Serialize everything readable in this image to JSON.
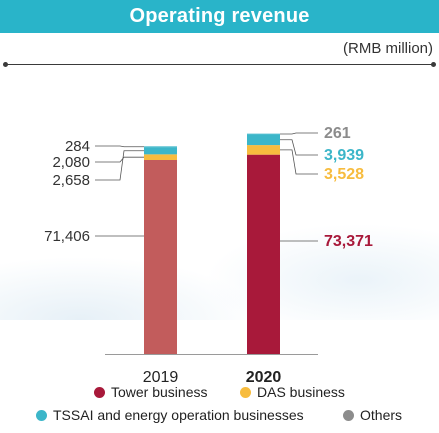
{
  "title": "Operating revenue",
  "unit": "(RMB million)",
  "colors": {
    "title_bg": "#29b4c9",
    "tower": "#c25c5c",
    "tower_2020": "#a8193a",
    "das": "#f7bc3e",
    "tssai": "#3cb6c9",
    "others": "#8c8c8c"
  },
  "legend": {
    "tower": "Tower business",
    "das": "DAS business",
    "tssai": "TSSAI and energy operation businesses",
    "others": "Others"
  },
  "chart_data": {
    "type": "bar",
    "stacked": true,
    "categories": [
      "2019",
      "2020"
    ],
    "series": [
      {
        "name": "Tower business",
        "values": [
          71406,
          73371
        ],
        "labels": [
          "71,406",
          "73,371"
        ]
      },
      {
        "name": "DAS business",
        "values": [
          2080,
          3528
        ],
        "labels": [
          "2,080",
          "3,528"
        ]
      },
      {
        "name": "TSSAI and energy operation businesses",
        "values": [
          2658,
          3939
        ],
        "labels": [
          "2,658",
          "3,939"
        ]
      },
      {
        "name": "Others",
        "values": [
          284,
          261
        ],
        "labels": [
          "284",
          "261"
        ]
      }
    ],
    "legend_position": "bottom",
    "grid": false
  }
}
